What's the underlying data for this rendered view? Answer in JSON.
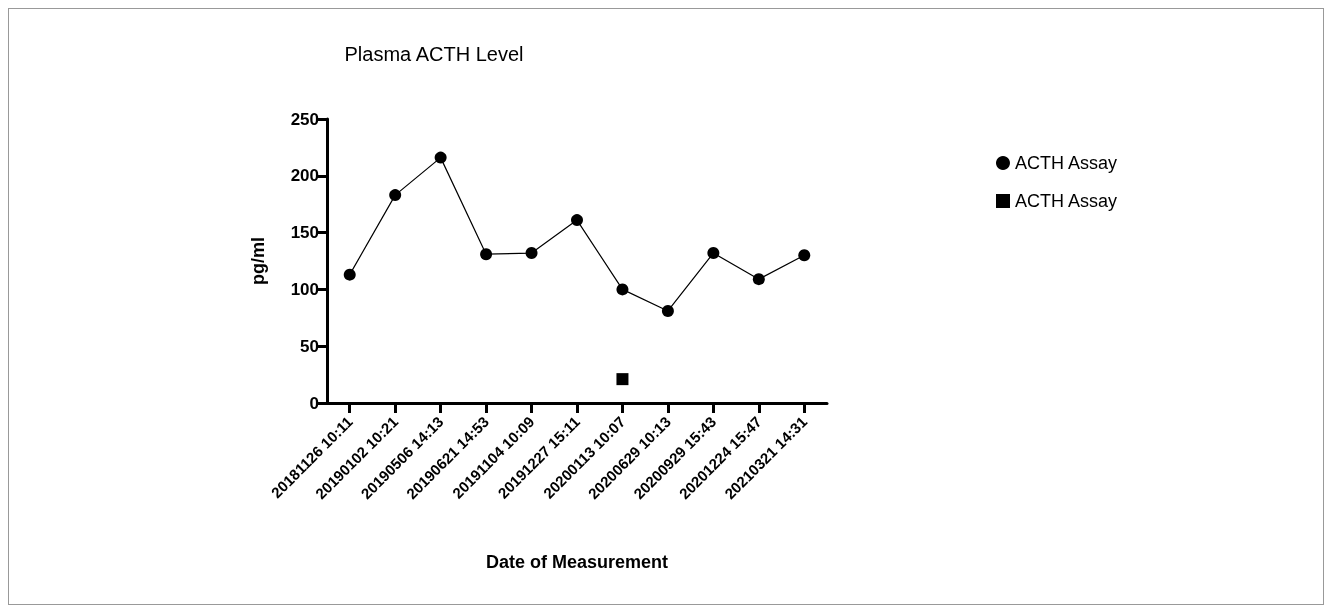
{
  "chart_data": {
    "type": "line",
    "title": "Plasma ACTH Level",
    "xlabel": "Date of Measurement",
    "ylabel": "pg/ml",
    "categories": [
      "20181126 10:11",
      "20190102 10:21",
      "20190506 14:13",
      "20190621 14:53",
      "20191104 10:09",
      "20191227 15:11",
      "20200113 10:07",
      "20200629 10:13",
      "20200929 15:43",
      "20201224 15:47",
      "20210321 14:31"
    ],
    "series": [
      {
        "name": "ACTH Assay",
        "color": "#000000",
        "marker": "circle",
        "values": [
          113,
          183,
          216,
          131,
          132,
          161,
          100,
          81,
          132,
          109,
          130
        ]
      },
      {
        "name": "ACTH Assay",
        "type": "scatter",
        "color": "#000000",
        "marker": "square",
        "values": [
          null,
          null,
          null,
          null,
          null,
          null,
          21,
          null,
          null,
          null,
          null
        ]
      }
    ],
    "ylim": [
      0,
      250
    ],
    "yticks": [
      0,
      50,
      100,
      150,
      200,
      250
    ],
    "grid": false,
    "legend": "top right"
  }
}
